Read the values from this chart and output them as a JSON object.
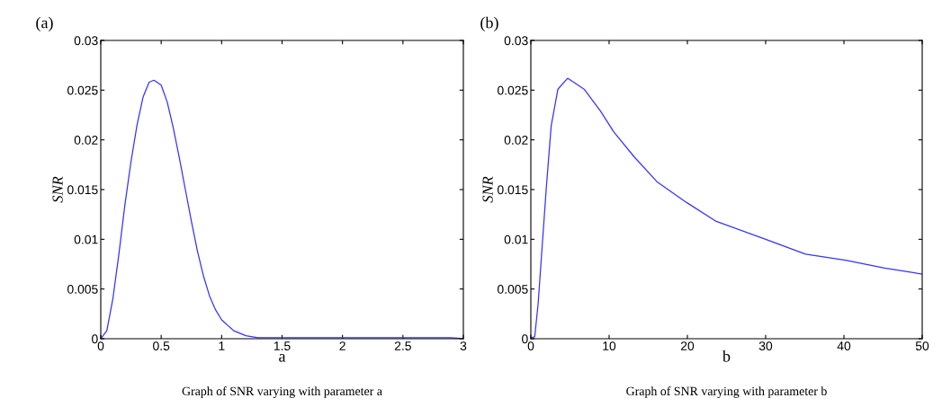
{
  "chart_data": [
    {
      "type": "line",
      "title": "(a)",
      "xlabel": "a",
      "ylabel": "SNR",
      "annotations": [
        "Graph of SNR varying with parameter a"
      ],
      "x": [
        0,
        0.05,
        0.1,
        0.15,
        0.2,
        0.25,
        0.3,
        0.35,
        0.4,
        0.44,
        0.5,
        0.55,
        0.6,
        0.65,
        0.7,
        0.75,
        0.8,
        0.85,
        0.9,
        0.95,
        1.0,
        1.1,
        1.2,
        1.3,
        1.5,
        2.0,
        2.5,
        2.9,
        3.0
      ],
      "series": [
        {
          "color": "#3333ff",
          "values": [
            0,
            0.0008,
            0.004,
            0.0085,
            0.0135,
            0.0178,
            0.0215,
            0.0243,
            0.0258,
            0.026,
            0.0255,
            0.0238,
            0.0212,
            0.0182,
            0.015,
            0.0118,
            0.0088,
            0.0063,
            0.0043,
            0.0029,
            0.0019,
            0.0008,
            0.0003,
            0.0001,
            0.0001,
            0.0001,
            0.0001,
            0.0001,
            0
          ]
        }
      ],
      "xlim": [
        0,
        3
      ],
      "xticks": [
        0,
        0.5,
        1,
        1.5,
        2,
        2.5,
        3
      ],
      "ylim": [
        0,
        0.03
      ],
      "yticks": [
        0,
        0.005,
        0.01,
        0.015,
        0.02,
        0.025,
        0.03
      ],
      "grid": false,
      "legend": false,
      "marker": "none",
      "line_style": "solid"
    },
    {
      "type": "line",
      "title": "(b)",
      "xlabel": "b",
      "ylabel": "SNR",
      "annotations": [
        "Graph of SNR varying with parameter b"
      ],
      "x": [
        0,
        0.5,
        0.93,
        1.35,
        1.98,
        2.6,
        3.46,
        4.7,
        6.8,
        8.9,
        10.6,
        13.2,
        16.1,
        19.9,
        23.7,
        30,
        35.1,
        40.2,
        45.2,
        50
      ],
      "series": [
        {
          "color": "#3333ff",
          "values": [
            0.0001,
            0.0002,
            0.0035,
            0.0082,
            0.0152,
            0.0214,
            0.0251,
            0.0262,
            0.0251,
            0.0229,
            0.0208,
            0.0183,
            0.0158,
            0.0137,
            0.0118,
            0.01,
            0.0085,
            0.0079,
            0.0071,
            0.0065
          ]
        }
      ],
      "xlim": [
        0,
        50
      ],
      "xticks": [
        0,
        10,
        20,
        30,
        40,
        50
      ],
      "ylim": [
        0,
        0.03
      ],
      "yticks": [
        0,
        0.005,
        0.01,
        0.015,
        0.02,
        0.025,
        0.03
      ],
      "grid": false,
      "legend": false,
      "marker": "none",
      "line_style": "solid"
    }
  ]
}
